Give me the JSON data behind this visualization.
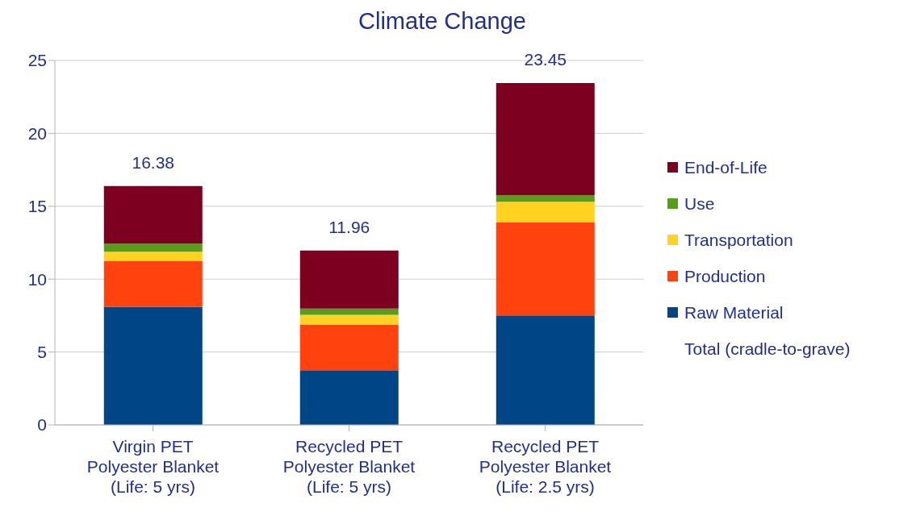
{
  "chart_data": {
    "type": "bar",
    "title": "Climate Change",
    "stacked": true,
    "categories": [
      "Virgin PET\nPolyester Blanket\n(Life: 5 yrs)",
      "Recycled PET\nPolyester Blanket\n(Life: 5 yrs)",
      "Recycled PET\nPolyester Blanket\n(Life: 2.5 yrs)"
    ],
    "series": [
      {
        "name": "Raw Material",
        "color": "#004586",
        "values": [
          8.1,
          3.75,
          7.51
        ]
      },
      {
        "name": "Production",
        "color": "#ff420e",
        "values": [
          3.14,
          3.14,
          6.37
        ]
      },
      {
        "name": "Transportation",
        "color": "#ffd320",
        "values": [
          0.64,
          0.66,
          1.43
        ]
      },
      {
        "name": "Use",
        "color": "#579d1c",
        "values": [
          0.55,
          0.43,
          0.44
        ]
      },
      {
        "name": "End-of-Life",
        "color": "#7e0021",
        "values": [
          3.95,
          3.98,
          7.7
        ]
      }
    ],
    "totals": [
      "16.38",
      "11.96",
      "23.45"
    ],
    "annotations": [
      "Total (cradle-to-grave)"
    ],
    "ylim": [
      0,
      25
    ],
    "yticks": [
      0,
      5,
      10,
      15,
      20,
      25
    ],
    "grid": "y",
    "legend": "right"
  }
}
